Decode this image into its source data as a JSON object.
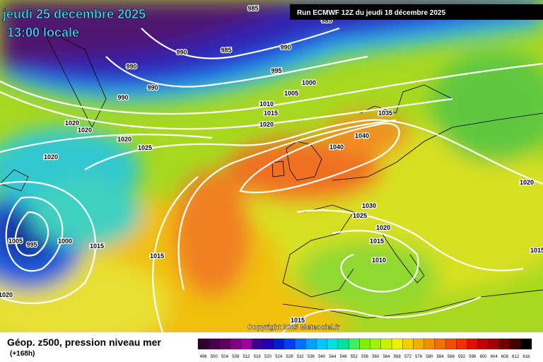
{
  "header": {
    "date": "jeudi 25 décembre 2025",
    "time": "13:00 locale",
    "run": "Run ECMWF 12Z du jeudi 18 décembre 2025"
  },
  "map": {
    "isobar_labels": [
      "985",
      "985",
      "990",
      "985",
      "990",
      "990",
      "990",
      "990",
      "995",
      "1000",
      "1005",
      "1010",
      "1015",
      "1020",
      "1035",
      "1040",
      "1040",
      "1020",
      "1020",
      "1020",
      "1025",
      "1020",
      "1030",
      "1025",
      "1020",
      "1015",
      "1010",
      "1015",
      "1005",
      "995",
      "1000",
      "1015",
      "1015",
      "1020",
      "1015",
      "1020"
    ],
    "copyright": "Copyright 2025 Meteociel.fr"
  },
  "footer": {
    "title": "Géop. z500, pression niveau mer",
    "lead": "(+168h)"
  },
  "legend": {
    "labels": [
      496,
      500,
      504,
      508,
      512,
      516,
      520,
      524,
      528,
      532,
      536,
      540,
      544,
      548,
      552,
      556,
      560,
      564,
      568,
      572,
      576,
      580,
      584,
      588,
      592,
      596,
      600,
      604,
      608,
      612,
      616
    ]
  }
}
